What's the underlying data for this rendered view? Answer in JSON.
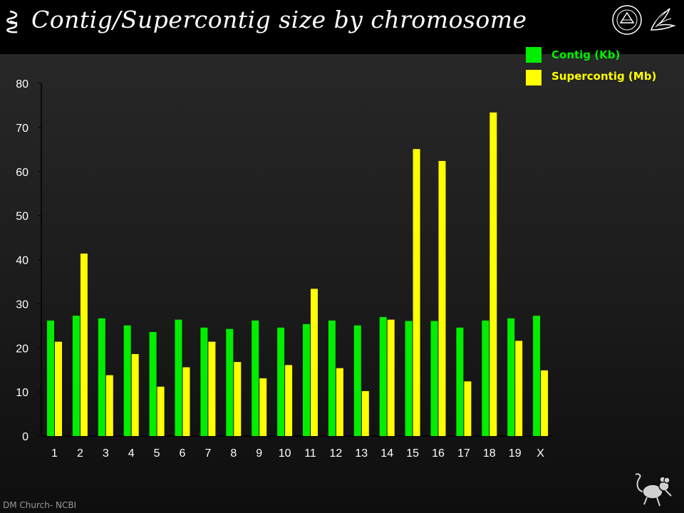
{
  "title": "Contig/Supercontig size by chromosome",
  "footer": "DM Church- NCBI",
  "icons": [
    "chromosome-icon",
    "nih-seal-icon",
    "hhs-eagle-icon",
    "mouse-icon"
  ],
  "colors": {
    "contig": "#00ee00",
    "supercontig": "#ffff00",
    "axis_text": "#ffffff",
    "background": "#1e1e1e"
  },
  "legend": {
    "contig_label": "Contig (Kb)",
    "supercontig_label": "Supercontig (Mb)",
    "placement": "top-right"
  },
  "chart_data": {
    "type": "bar",
    "title": "Contig/Supercontig size by chromosome",
    "xlabel": "",
    "ylabel": "",
    "ylim": [
      0,
      80
    ],
    "yticks": [
      0,
      10,
      20,
      30,
      40,
      50,
      60,
      70,
      80
    ],
    "grid": false,
    "categories": [
      "1",
      "2",
      "3",
      "4",
      "5",
      "6",
      "7",
      "8",
      "9",
      "10",
      "11",
      "12",
      "13",
      "14",
      "15",
      "16",
      "17",
      "18",
      "19",
      "X"
    ],
    "series": [
      {
        "name": "Contig (Kb)",
        "color": "#00ee00",
        "values": [
          26.2,
          27.3,
          26.7,
          25.1,
          23.6,
          26.4,
          24.6,
          24.3,
          26.2,
          24.6,
          25.4,
          26.2,
          25.1,
          27.0,
          26.1,
          26.1,
          24.6,
          26.2,
          26.7,
          27.3
        ]
      },
      {
        "name": "Supercontig (Mb)",
        "color": "#ffff00",
        "values": [
          21.4,
          41.4,
          13.8,
          18.6,
          11.2,
          15.6,
          21.4,
          16.8,
          13.1,
          16.1,
          33.4,
          15.4,
          10.2,
          26.4,
          65.1,
          62.4,
          12.4,
          73.4,
          21.6,
          14.9
        ]
      }
    ]
  }
}
